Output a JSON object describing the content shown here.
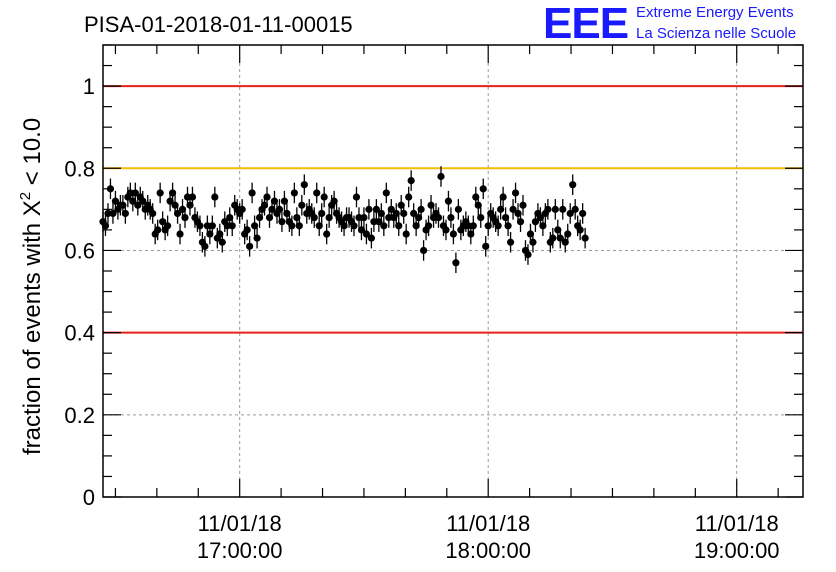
{
  "title": "PISA-01-2018-01-11-00015",
  "logo": {
    "mark": "EEE",
    "line1": "Extreme Energy Events",
    "line2": "La Scienza nelle Scuole",
    "color": "#1a1aff"
  },
  "chart_data": {
    "type": "scatter",
    "title": "PISA-01-2018-01-11-00015",
    "ylabel_prefix": "fraction of events with X",
    "ylabel_sup": "2",
    "ylabel_suffix": " < 10.0",
    "xlabel": "",
    "ylim": [
      0,
      1.1
    ],
    "yticks": [
      0,
      0.2,
      0.4,
      0.6,
      0.8,
      1
    ],
    "ytick_labels": [
      "0",
      "0.2",
      "0.4",
      "0.6",
      "0.8",
      "1"
    ],
    "xlim": [
      "2018-01-11T16:27:00",
      "2018-01-11T19:16:00"
    ],
    "xticks": [
      {
        "time": "2018-01-11T17:00:00",
        "date_label": "11/01/18",
        "time_label": "17:00:00"
      },
      {
        "time": "2018-01-11T18:00:00",
        "date_label": "11/01/18",
        "time_label": "18:00:00"
      },
      {
        "time": "2018-01-11T19:00:00",
        "date_label": "11/01/18",
        "time_label": "19:00:00"
      }
    ],
    "grid": true,
    "reference_lines": [
      {
        "y": 1.0,
        "color": "#e8201a"
      },
      {
        "y": 0.8,
        "color": "#f5bd00"
      },
      {
        "y": 0.4,
        "color": "#e8201a"
      }
    ],
    "marker_color": "#000000",
    "error": 0.025,
    "series": [
      {
        "x_start": "2018-01-11T16:27:00",
        "x_step_minutes": 0.6,
        "values": [
          0.67,
          0.66,
          0.69,
          0.75,
          0.69,
          0.72,
          0.7,
          0.71,
          0.71,
          0.69,
          0.73,
          0.74,
          0.72,
          0.74,
          0.71,
          0.73,
          0.72,
          0.7,
          0.71,
          0.7,
          0.69,
          0.64,
          0.65,
          0.74,
          0.67,
          0.65,
          0.66,
          0.72,
          0.74,
          0.71,
          0.69,
          0.64,
          0.7,
          0.68,
          0.73,
          0.71,
          0.73,
          0.68,
          0.67,
          0.66,
          0.62,
          0.61,
          0.66,
          0.64,
          0.66,
          0.73,
          0.63,
          0.64,
          0.62,
          0.67,
          0.66,
          0.68,
          0.66,
          0.71,
          0.7,
          0.69,
          0.7,
          0.64,
          0.65,
          0.61,
          0.74,
          0.66,
          0.63,
          0.68,
          0.7,
          0.71,
          0.73,
          0.68,
          0.7,
          0.72,
          0.69,
          0.7,
          0.67,
          0.72,
          0.69,
          0.67,
          0.66,
          0.74,
          0.68,
          0.66,
          0.71,
          0.76,
          0.69,
          0.7,
          0.69,
          0.68,
          0.74,
          0.66,
          0.69,
          0.73,
          0.64,
          0.68,
          0.71,
          0.72,
          0.69,
          0.68,
          0.67,
          0.66,
          0.68,
          0.68,
          0.67,
          0.66,
          0.73,
          0.68,
          0.65,
          0.68,
          0.64,
          0.7,
          0.63,
          0.67,
          0.7,
          0.67,
          0.69,
          0.66,
          0.74,
          0.68,
          0.7,
          0.68,
          0.69,
          0.66,
          0.71,
          0.69,
          0.64,
          0.73,
          0.77,
          0.69,
          0.66,
          0.68,
          0.7,
          0.6,
          0.65,
          0.66,
          0.71,
          0.68,
          0.69,
          0.68,
          0.78,
          0.66,
          0.65,
          0.72,
          0.68,
          0.64,
          0.57,
          0.7,
          0.65,
          0.66,
          0.67,
          0.66,
          0.64,
          0.66,
          0.73,
          0.71,
          0.68,
          0.75,
          0.61,
          0.66,
          0.69,
          0.68,
          0.67,
          0.66,
          0.7,
          0.73,
          0.68,
          0.66,
          0.62,
          0.7,
          0.74,
          0.69,
          0.67,
          0.71,
          0.6,
          0.59,
          0.64,
          0.62,
          0.67,
          0.69,
          0.68,
          0.66,
          0.69,
          0.7,
          0.62,
          0.63,
          0.7,
          0.65,
          0.63,
          0.7,
          0.62,
          0.64,
          0.69,
          0.76,
          0.7,
          0.66,
          0.65,
          0.69,
          0.63
        ]
      }
    ]
  }
}
